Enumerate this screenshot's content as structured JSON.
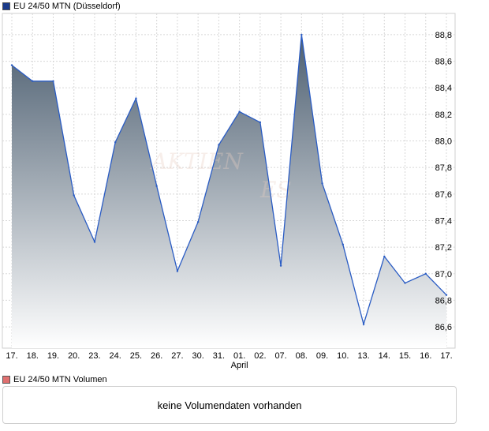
{
  "price_legend": {
    "label": "EU 24/50 MTN (Düsseldorf)",
    "color": "#1a3a8a"
  },
  "volume_legend": {
    "label": "EU 24/50 MTN Volumen",
    "color": "#e07070"
  },
  "volume_panel": {
    "message": "keine Volumendaten vorhanden"
  },
  "watermark": {
    "text": "AKTIEN",
    "text2": "ES"
  },
  "chart_data": {
    "type": "area",
    "title": "EU 24/50 MTN (Düsseldorf)",
    "x": [
      "17.",
      "18.",
      "19.",
      "20.",
      "23.",
      "24.",
      "25.",
      "26.",
      "27.",
      "30.",
      "31.",
      "01.",
      "02.",
      "07.",
      "08.",
      "09.",
      "10.",
      "13.",
      "14.",
      "15.",
      "16.",
      "17."
    ],
    "x_sublabel": {
      "index": 11,
      "text": "April"
    },
    "values": [
      88.57,
      88.45,
      88.45,
      87.59,
      87.24,
      87.99,
      88.32,
      87.66,
      87.02,
      87.39,
      87.97,
      88.22,
      88.14,
      87.06,
      88.8,
      87.68,
      87.22,
      86.62,
      87.13,
      86.93,
      87.0,
      86.84
    ],
    "y_ticks": [
      "86,6",
      "86,8",
      "87,0",
      "87,2",
      "87,4",
      "87,6",
      "87,8",
      "88,0",
      "88,2",
      "88,4",
      "88,6",
      "88,8"
    ],
    "ylim": [
      86.44,
      88.96
    ],
    "grid": true,
    "line_color": "#2a5cc4",
    "fill_top_color": "#4d5f71",
    "fill_bottom_color": "#ffffff"
  }
}
